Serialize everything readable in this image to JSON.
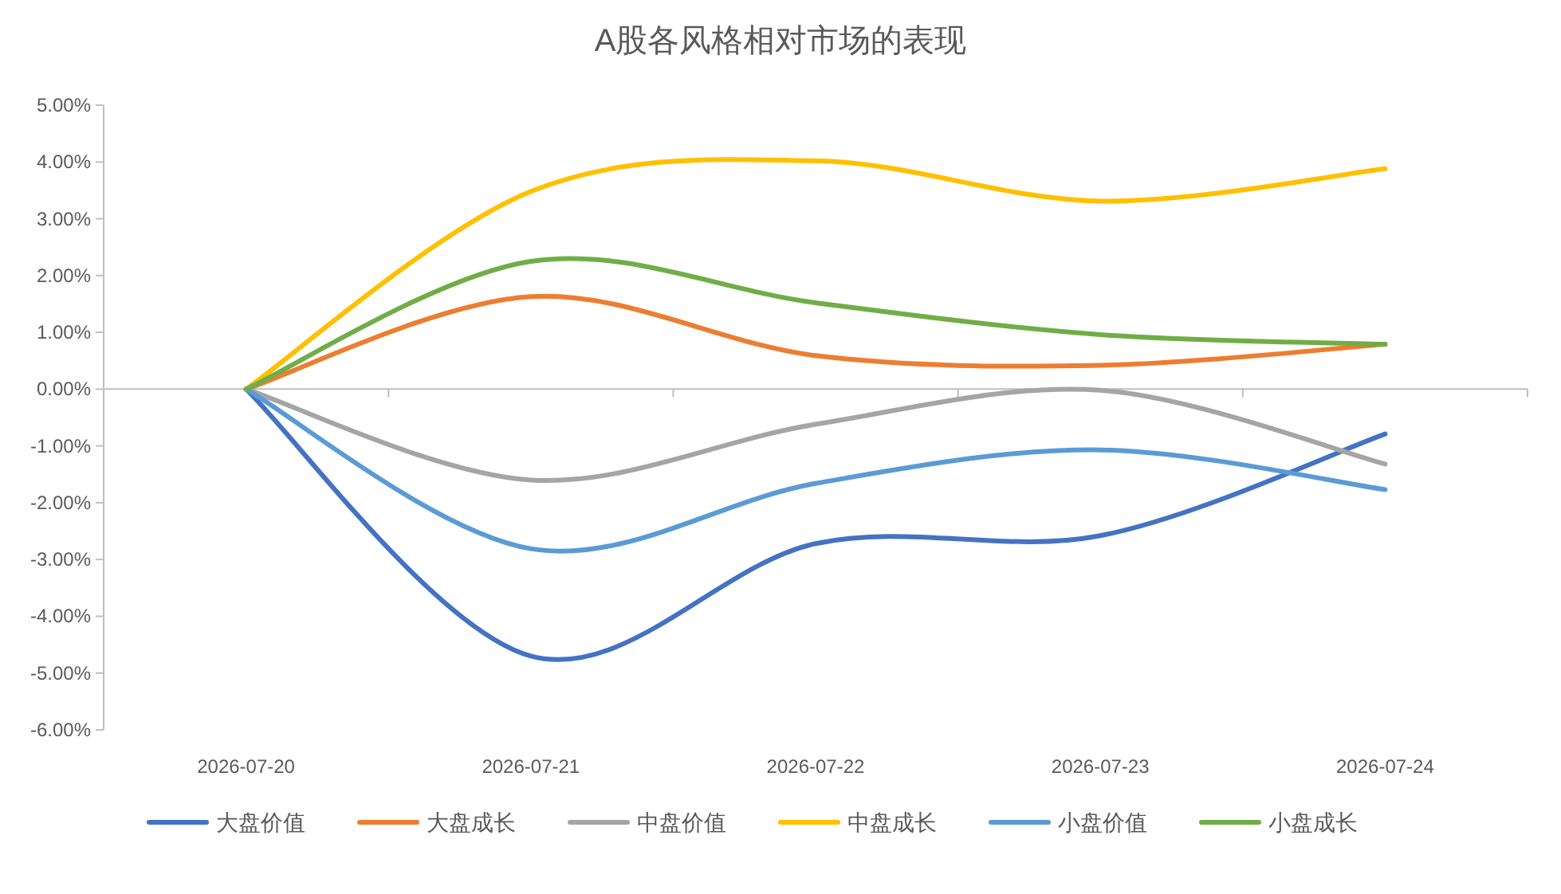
{
  "chart_data": {
    "type": "line",
    "title": "A股各风格相对市场的表现",
    "categories": [
      "2026-07-20",
      "2026-07-21",
      "2026-07-22",
      "2026-07-23",
      "2026-07-24"
    ],
    "series": [
      {
        "name": "大盘价值",
        "color": "#4472c4",
        "values": [
          0,
          -4.7,
          -2.72,
          -2.58,
          -0.79
        ]
      },
      {
        "name": "大盘成长",
        "color": "#ed7d31",
        "values": [
          0,
          1.63,
          0.59,
          0.42,
          0.79
        ]
      },
      {
        "name": "中盘价值",
        "color": "#a5a5a5",
        "values": [
          0,
          -1.6,
          -0.62,
          -0.02,
          -1.32
        ]
      },
      {
        "name": "中盘成长",
        "color": "#ffc000",
        "values": [
          0,
          3.48,
          4.02,
          3.31,
          3.88
        ]
      },
      {
        "name": "小盘价值",
        "color": "#5b9bd5",
        "values": [
          0,
          -2.81,
          -1.66,
          -1.07,
          -1.77
        ]
      },
      {
        "name": "小盘成长",
        "color": "#70ad47",
        "values": [
          0,
          2.25,
          1.52,
          0.96,
          0.79
        ]
      }
    ],
    "ylim": [
      -6,
      5
    ],
    "yticks": [
      {
        "value": -6,
        "label": "-6.00%"
      },
      {
        "value": -5,
        "label": "-5.00%"
      },
      {
        "value": -4,
        "label": "-4.00%"
      },
      {
        "value": -3,
        "label": "-3.00%"
      },
      {
        "value": -2,
        "label": "-2.00%"
      },
      {
        "value": -1,
        "label": "-1.00%"
      },
      {
        "value": 0,
        "label": "0.00%"
      },
      {
        "value": 1,
        "label": "1.00%"
      },
      {
        "value": 2,
        "label": "2.00%"
      },
      {
        "value": 3,
        "label": "3.00%"
      },
      {
        "value": 4,
        "label": "4.00%"
      },
      {
        "value": 5,
        "label": "5.00%"
      }
    ],
    "legend": "bottom",
    "marker": "none",
    "line_style": "solid"
  }
}
